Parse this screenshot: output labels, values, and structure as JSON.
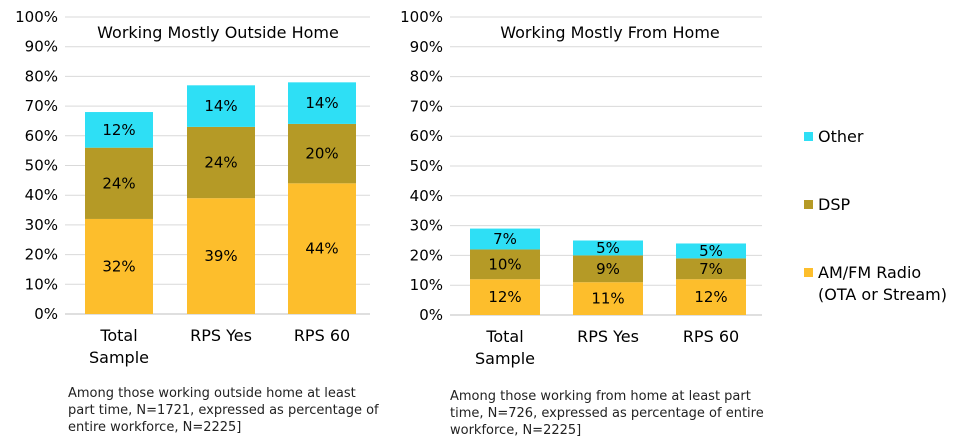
{
  "colors": {
    "am_fm": "#FDBE2C",
    "dsp": "#B59A26",
    "other": "#2EDFF5",
    "grid": "#D9D9D9",
    "axis": "#BFBFBF"
  },
  "legend": {
    "items": [
      {
        "name": "Other",
        "lines": [
          "Other"
        ],
        "color_key": "other"
      },
      {
        "name": "DSP",
        "lines": [
          "DSP"
        ],
        "color_key": "dsp"
      },
      {
        "name": "AM/FM Radio (OTA or Stream)",
        "lines": [
          "AM/FM Radio",
          "(OTA or Stream)"
        ],
        "color_key": "am_fm"
      }
    ]
  },
  "chart_data": [
    {
      "type": "bar",
      "stacked": true,
      "title": "Working Mostly Outside Home",
      "categories": [
        "Total Sample",
        "RPS Yes",
        "RPS 60"
      ],
      "category_lines": [
        [
          "Total",
          "Sample"
        ],
        [
          "RPS Yes"
        ],
        [
          "RPS 60"
        ]
      ],
      "series": [
        {
          "name": "AM/FM Radio (OTA or Stream)",
          "values": [
            32,
            39,
            44
          ],
          "labels": [
            "32%",
            "39%",
            "44%"
          ]
        },
        {
          "name": "DSP",
          "values": [
            24,
            24,
            20
          ],
          "labels": [
            "24%",
            "24%",
            "20%"
          ]
        },
        {
          "name": "Other",
          "values": [
            12,
            14,
            14
          ],
          "labels": [
            "12%",
            "14%",
            "14%"
          ]
        }
      ],
      "ylim": [
        0,
        100
      ],
      "yticks": [
        "0%",
        "10%",
        "20%",
        "30%",
        "40%",
        "50%",
        "60%",
        "70%",
        "80%",
        "90%",
        "100%"
      ],
      "grid": true,
      "footnote": "Among those working outside home at least\npart time, N=1721, expressed as percentage of\nentire workforce, N=2225]"
    },
    {
      "type": "bar",
      "stacked": true,
      "title": "Working Mostly From Home",
      "categories": [
        "Total Sample",
        "RPS Yes",
        "RPS 60"
      ],
      "category_lines": [
        [
          "Total",
          "Sample"
        ],
        [
          "RPS Yes"
        ],
        [
          "RPS 60"
        ]
      ],
      "series": [
        {
          "name": "AM/FM Radio (OTA or Stream)",
          "values": [
            12,
            11,
            12
          ],
          "labels": [
            "12%",
            "11%",
            "12%"
          ]
        },
        {
          "name": "DSP",
          "values": [
            10,
            9,
            7
          ],
          "labels": [
            "10%",
            "9%",
            "7%"
          ]
        },
        {
          "name": "Other",
          "values": [
            7,
            5,
            5
          ],
          "labels": [
            "7%",
            "5%",
            "5%"
          ]
        }
      ],
      "ylim": [
        0,
        100
      ],
      "yticks": [
        "0%",
        "10%",
        "20%",
        "30%",
        "40%",
        "50%",
        "60%",
        "70%",
        "80%",
        "90%",
        "100%"
      ],
      "grid": true,
      "footnote": "Among those working from home at least part\ntime, N=726, expressed as percentage of entire\nworkforce, N=2225]"
    }
  ]
}
